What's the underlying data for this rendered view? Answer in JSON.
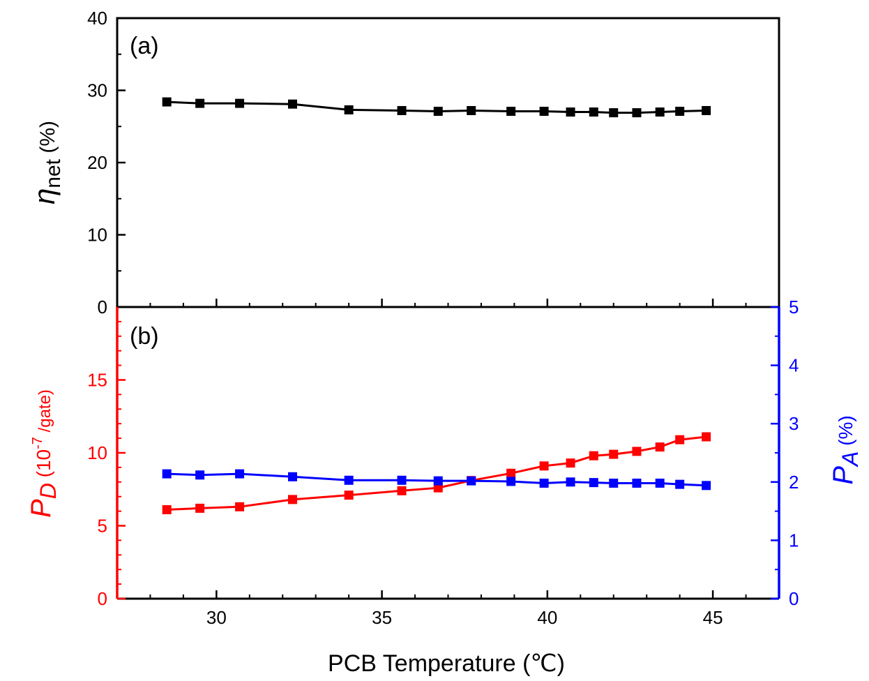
{
  "chart_data": [
    {
      "type": "line",
      "panel_label": "(a)",
      "xlabel": "PCB Temperature (℃)",
      "xlim": [
        27,
        47
      ],
      "xticks": [
        30,
        35,
        40,
        45
      ],
      "ylabel": {
        "symbol": "η",
        "subscript": "net",
        "unit": " (%)"
      },
      "ylim": [
        0,
        40
      ],
      "yticks": [
        0,
        10,
        20,
        30,
        40
      ],
      "grid": false,
      "colors": {
        "series": "#000000"
      },
      "series": [
        {
          "name": "",
          "color": "#000000",
          "marker": "square",
          "x": [
            28.5,
            29.5,
            30.7,
            32.3,
            34.0,
            35.6,
            36.7,
            37.7,
            38.9,
            39.9,
            40.7,
            41.4,
            42.0,
            42.7,
            43.4,
            44.0,
            44.8
          ],
          "y": [
            28.4,
            28.2,
            28.2,
            28.1,
            27.3,
            27.2,
            27.1,
            27.2,
            27.1,
            27.1,
            27.0,
            27.0,
            26.9,
            26.9,
            27.0,
            27.1,
            27.2
          ]
        }
      ]
    },
    {
      "type": "line",
      "panel_label": "(b)",
      "xlabel": "PCB Temperature (℃)",
      "xlim": [
        27,
        47
      ],
      "xticks": [
        30,
        35,
        40,
        45
      ],
      "ylabel_left": {
        "symbol": "P",
        "subscript": "D",
        "unit_prefix": " (10",
        "unit_exp": "-7",
        "unit_suffix": " /gate)"
      },
      "ylim_left": [
        0,
        20
      ],
      "yticks_left": [
        0,
        5,
        10,
        15
      ],
      "ylabel_right": {
        "symbol": "P",
        "subscript": "A",
        "unit": " (%)"
      },
      "ylim_right": [
        0,
        5
      ],
      "yticks_right": [
        0,
        1,
        2,
        3,
        4,
        5
      ],
      "grid": false,
      "colors": {
        "left_axis": "#ff0000",
        "right_axis": "#0000ff"
      },
      "series": [
        {
          "name": "",
          "axis": "left",
          "color": "#ff0000",
          "marker": "square",
          "x": [
            28.5,
            29.5,
            30.7,
            32.3,
            34.0,
            35.6,
            36.7,
            37.7,
            38.9,
            39.9,
            40.7,
            41.4,
            42.0,
            42.7,
            43.4,
            44.0,
            44.8
          ],
          "y": [
            6.1,
            6.2,
            6.3,
            6.8,
            7.1,
            7.4,
            7.6,
            8.1,
            8.6,
            9.1,
            9.3,
            9.8,
            9.9,
            10.1,
            10.4,
            10.9,
            11.1
          ]
        },
        {
          "name": "",
          "axis": "right",
          "color": "#0000ff",
          "marker": "square",
          "x": [
            28.5,
            29.5,
            30.7,
            32.3,
            34.0,
            35.6,
            36.7,
            37.7,
            38.9,
            39.9,
            40.7,
            41.4,
            42.0,
            42.7,
            43.4,
            44.0,
            44.8
          ],
          "y": [
            2.14,
            2.12,
            2.14,
            2.09,
            2.03,
            2.03,
            2.02,
            2.02,
            2.01,
            1.98,
            2.0,
            1.99,
            1.98,
            1.98,
            1.98,
            1.96,
            1.94
          ]
        }
      ]
    }
  ]
}
